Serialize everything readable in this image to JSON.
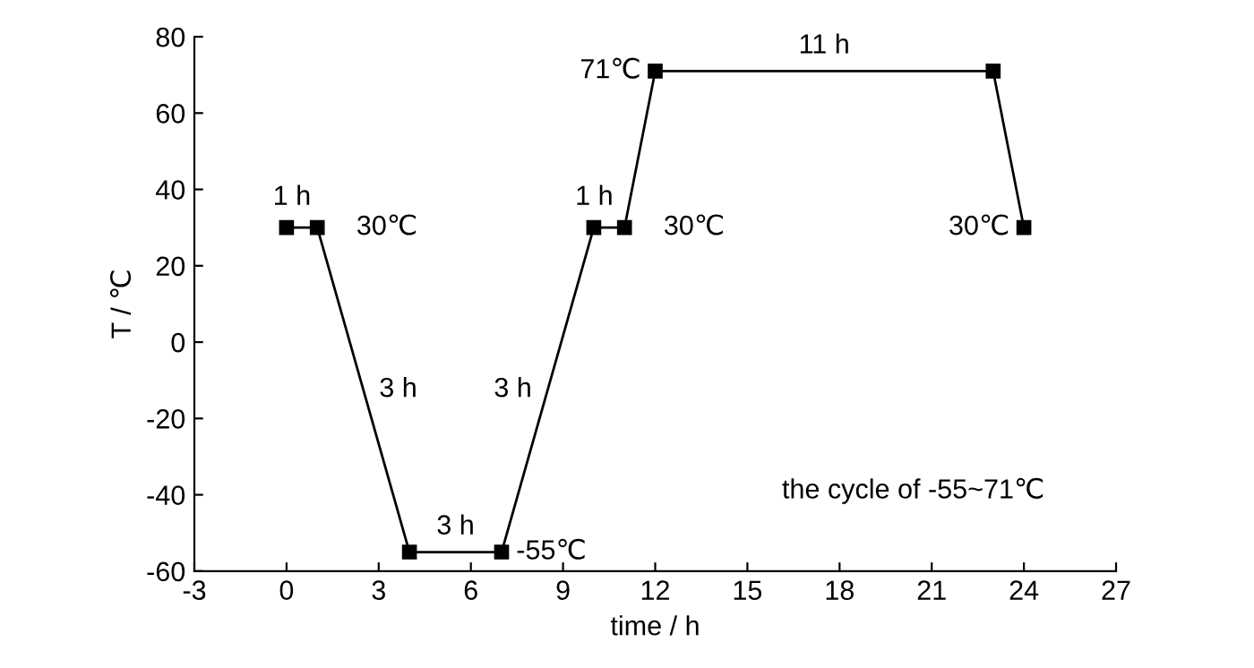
{
  "chart_data": {
    "type": "line",
    "xlabel": "time / h",
    "ylabel": "T / ℃",
    "x": [
      0,
      1,
      4,
      7,
      10,
      11,
      12,
      23,
      24
    ],
    "values": [
      30,
      30,
      -55,
      -55,
      30,
      30,
      71,
      71,
      30
    ],
    "color": "#000000",
    "marker": "square",
    "line_style": "solid",
    "xlim": [
      -3,
      27
    ],
    "xticks": [
      -3,
      0,
      3,
      6,
      9,
      12,
      15,
      18,
      21,
      24,
      27
    ],
    "ylim": [
      -60,
      80
    ],
    "yticks": [
      -60,
      -40,
      -20,
      0,
      20,
      40,
      60,
      80
    ],
    "grid": false,
    "legend": false,
    "annotations": [
      {
        "text": "1 h",
        "x": 0.5,
        "y": 30
      },
      {
        "text": "30℃",
        "x": 1,
        "y": 30
      },
      {
        "text": "3 h",
        "x": 2.5,
        "y": -12.5
      },
      {
        "text": "3 h",
        "x": 5.5,
        "y": -55
      },
      {
        "text": "-55℃",
        "x": 7,
        "y": -55
      },
      {
        "text": "3 h",
        "x": 8.5,
        "y": -12.5
      },
      {
        "text": "1 h",
        "x": 10.5,
        "y": 30
      },
      {
        "text": "30℃",
        "x": 11,
        "y": 30
      },
      {
        "text": "71℃",
        "x": 12,
        "y": 71
      },
      {
        "text": "11 h",
        "x": 17.5,
        "y": 71
      },
      {
        "text": "30℃",
        "x": 24,
        "y": 30
      },
      "the cycle of -55~71℃"
    ]
  }
}
